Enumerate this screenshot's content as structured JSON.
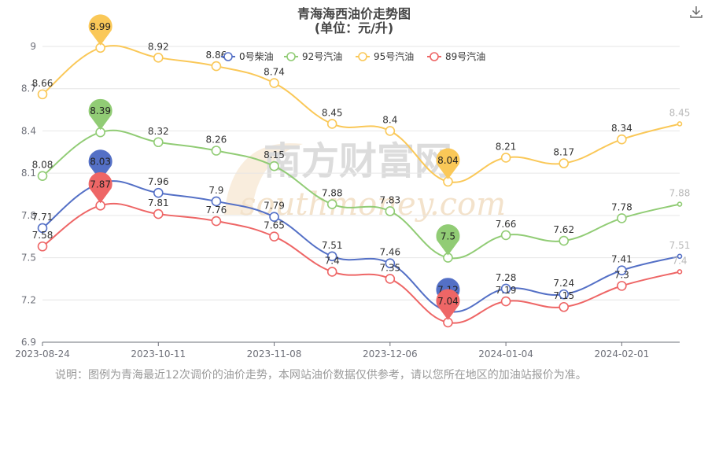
{
  "title": "青海海西油价走势图",
  "subtitle": "(单位：元/升)",
  "note": "说明：图例为青海最近12次调价的油价走势，本网站油价数据仅供参考，请以您所在地区的加油站报价为准。",
  "watermark": {
    "cn": "南方财富网",
    "en": "southmoney.com"
  },
  "toolbar": {
    "download_icon": "download-icon"
  },
  "chart_data": {
    "type": "line",
    "x": [
      "2023-08-24",
      "2023-09-13",
      "2023-10-11",
      "2023-10-25",
      "2023-11-08",
      "2023-11-22",
      "2023-12-06",
      "2023-12-20",
      "2024-01-04",
      "2024-01-18",
      "2024-02-01",
      "2024-02-21"
    ],
    "x_tick_labels": [
      "2023-08-24",
      "2023-10-11",
      "2023-11-08",
      "2023-12-06",
      "2024-01-04",
      "2024-02-01"
    ],
    "y_ticks": [
      6.9,
      7.2,
      7.5,
      7.8,
      8.1,
      8.4,
      8.7,
      9
    ],
    "ylim": [
      6.9,
      9.0
    ],
    "grid": true,
    "legend_position": "top",
    "series": [
      {
        "name": "0号柴油",
        "color": "#5470c6",
        "values": [
          7.71,
          8.03,
          7.96,
          7.9,
          7.79,
          7.51,
          7.46,
          7.12,
          7.28,
          7.24,
          7.41,
          7.51
        ],
        "max_marker": "8.03",
        "min_marker": "7.12"
      },
      {
        "name": "92号汽油",
        "color": "#91cc75",
        "values": [
          8.08,
          8.39,
          8.32,
          8.26,
          8.15,
          7.88,
          7.83,
          7.5,
          7.66,
          7.62,
          7.78,
          7.88
        ],
        "max_marker": "8.39",
        "min_marker": "7.5"
      },
      {
        "name": "95号汽油",
        "color": "#fac858",
        "values": [
          8.66,
          8.99,
          8.92,
          8.86,
          8.74,
          8.45,
          8.4,
          8.04,
          8.21,
          8.17,
          8.34,
          8.45
        ],
        "max_marker": "8.99",
        "min_marker": "8.04"
      },
      {
        "name": "89号汽油",
        "color": "#ee6666",
        "values": [
          7.58,
          7.87,
          7.81,
          7.76,
          7.65,
          7.4,
          7.35,
          7.04,
          7.19,
          7.15,
          7.3,
          7.4
        ],
        "max_marker": "7.87",
        "min_marker": "7.04"
      }
    ]
  }
}
